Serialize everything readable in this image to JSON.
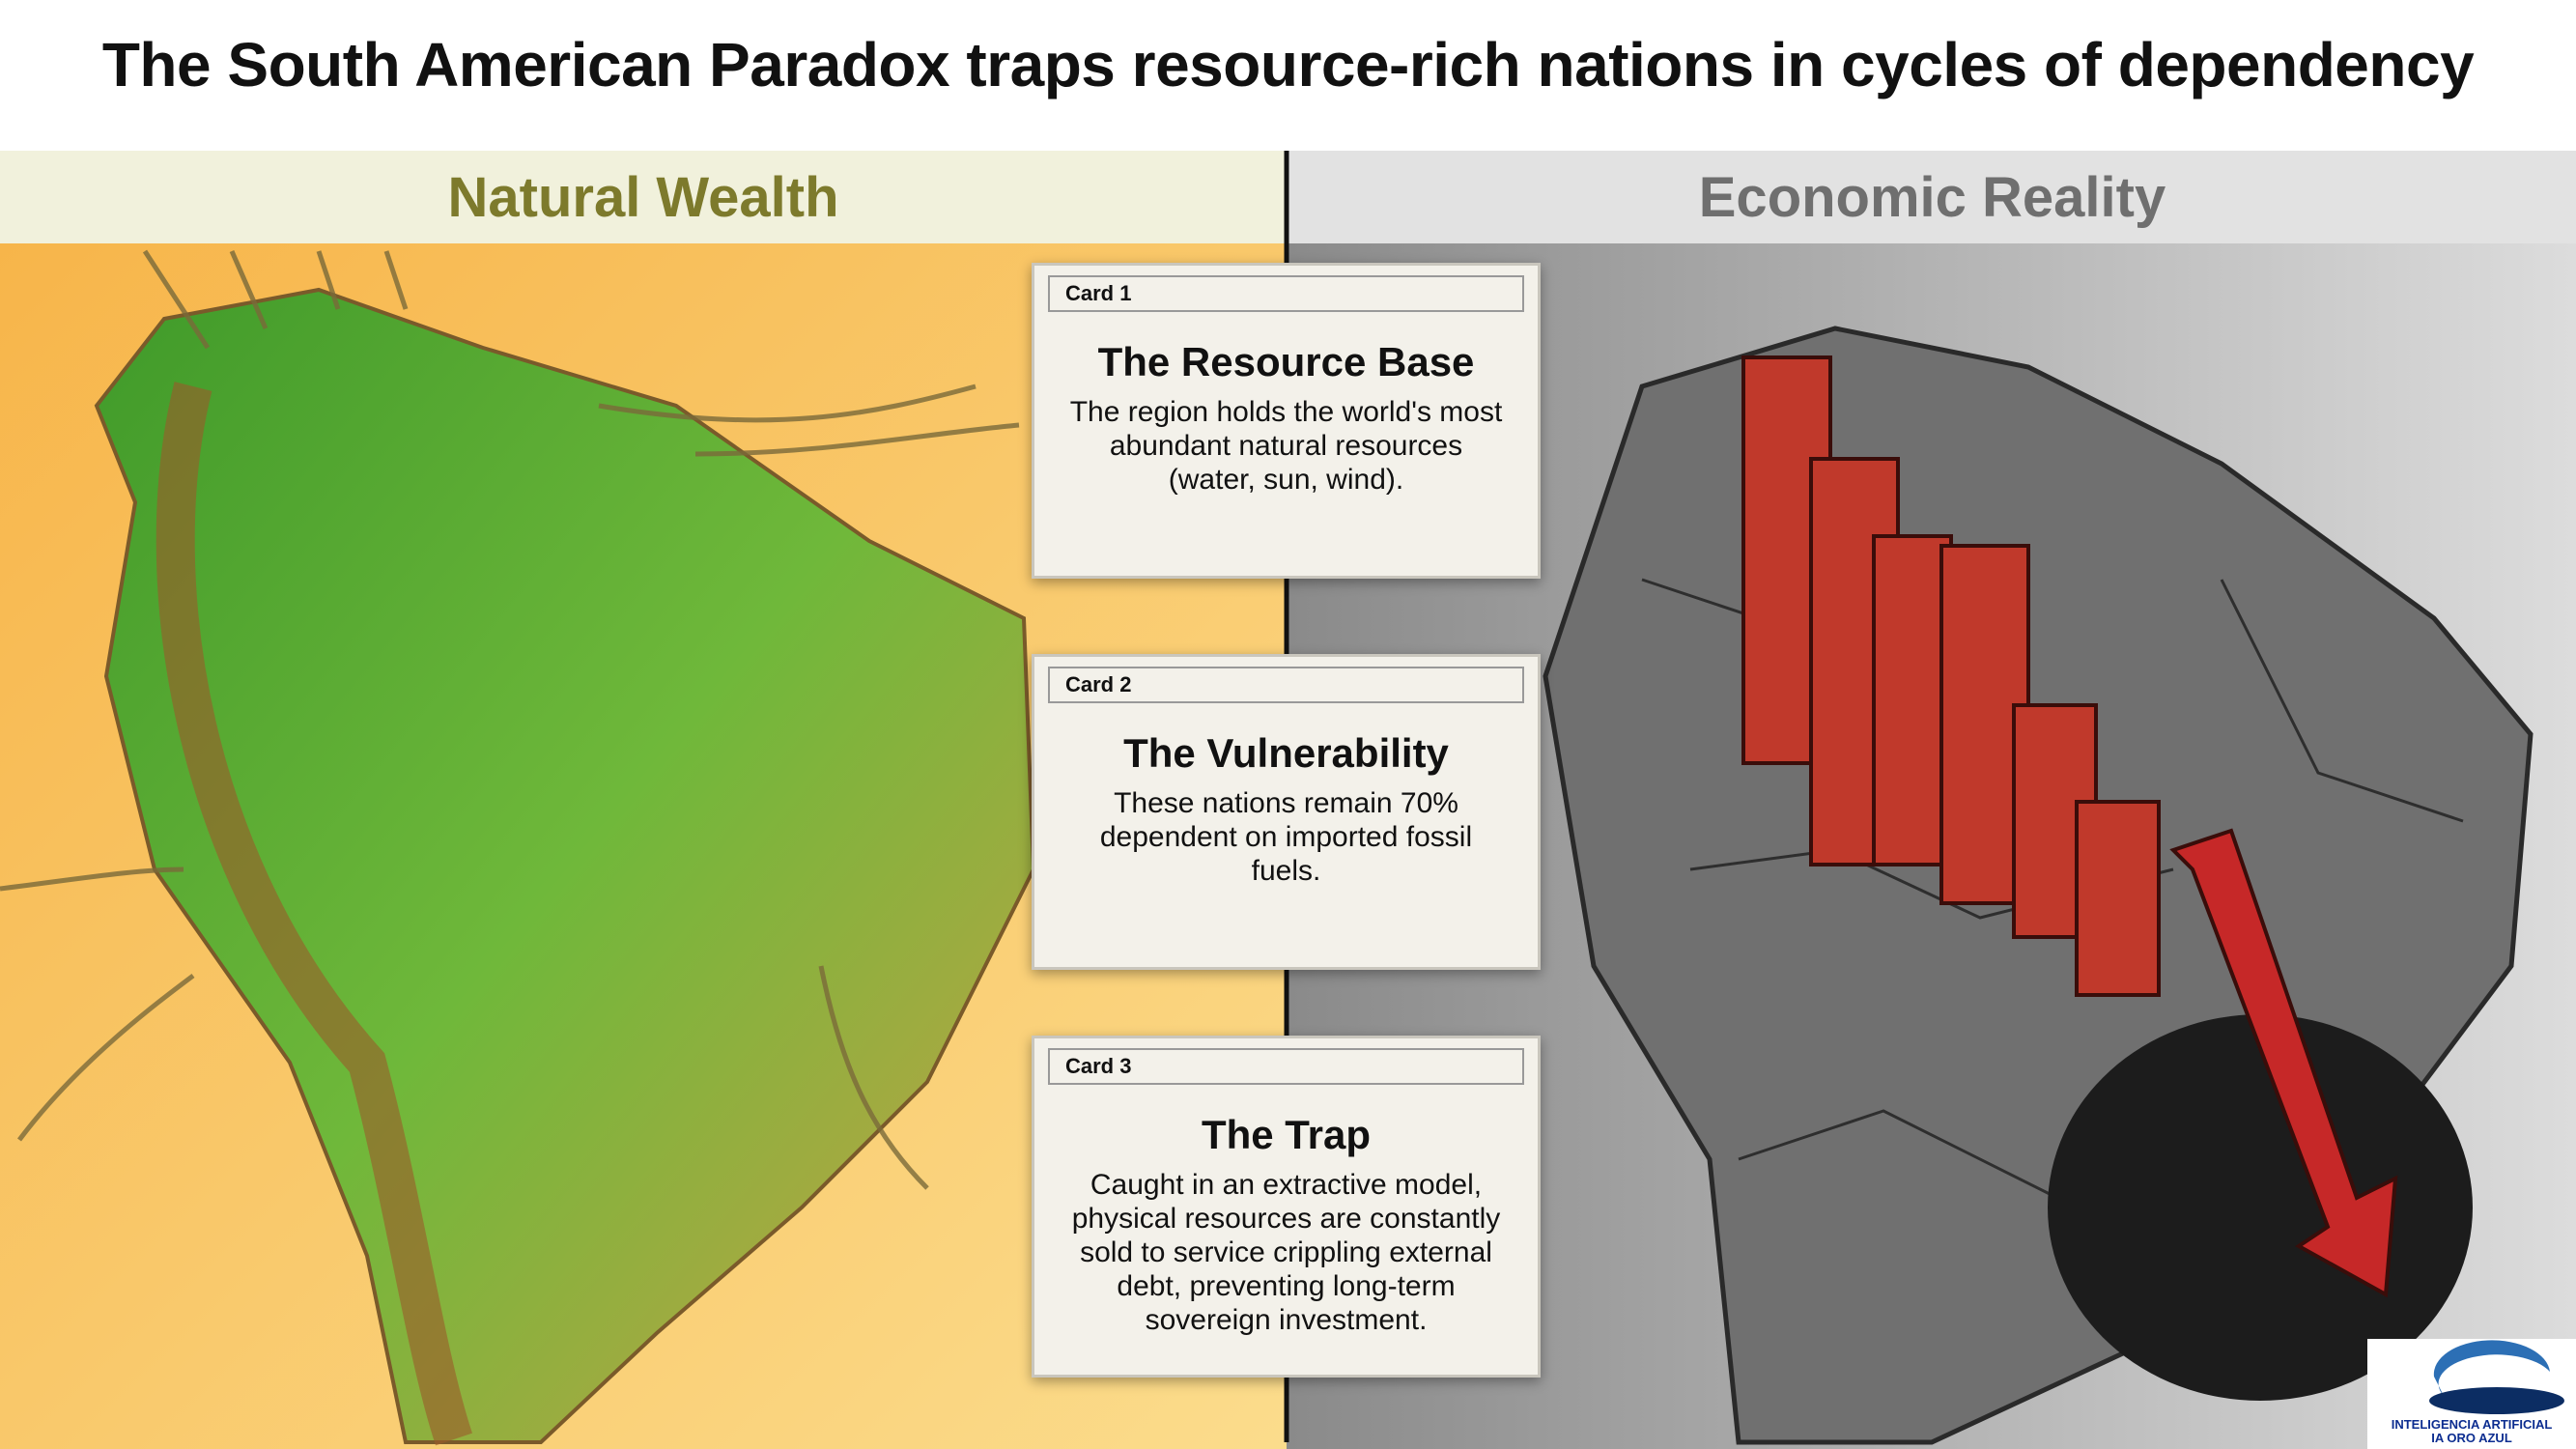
{
  "header": {
    "title": "The South American Paradox traps resource-rich nations in cycles of dependency"
  },
  "panels": {
    "left": "Natural Wealth",
    "right": "Economic Reality"
  },
  "cards": [
    {
      "tag": "Card 1",
      "title": "The Resource Base",
      "body": "The region holds the world's most abundant natural resources (water, sun, wind)."
    },
    {
      "tag": "Card 2",
      "title": "The Vulnerability",
      "body": "These nations remain 70% dependent on imported fossil fuels."
    },
    {
      "tag": "Card 3",
      "title": "The Trap",
      "body": "Caught in an extractive model, physical resources are constantly sold to service crippling external debt, preventing long-term sovereign investment."
    }
  ],
  "logo": {
    "line1": "INTELIGENCIA ARTIFICIAL",
    "line2": "IA ORO AZUL"
  }
}
